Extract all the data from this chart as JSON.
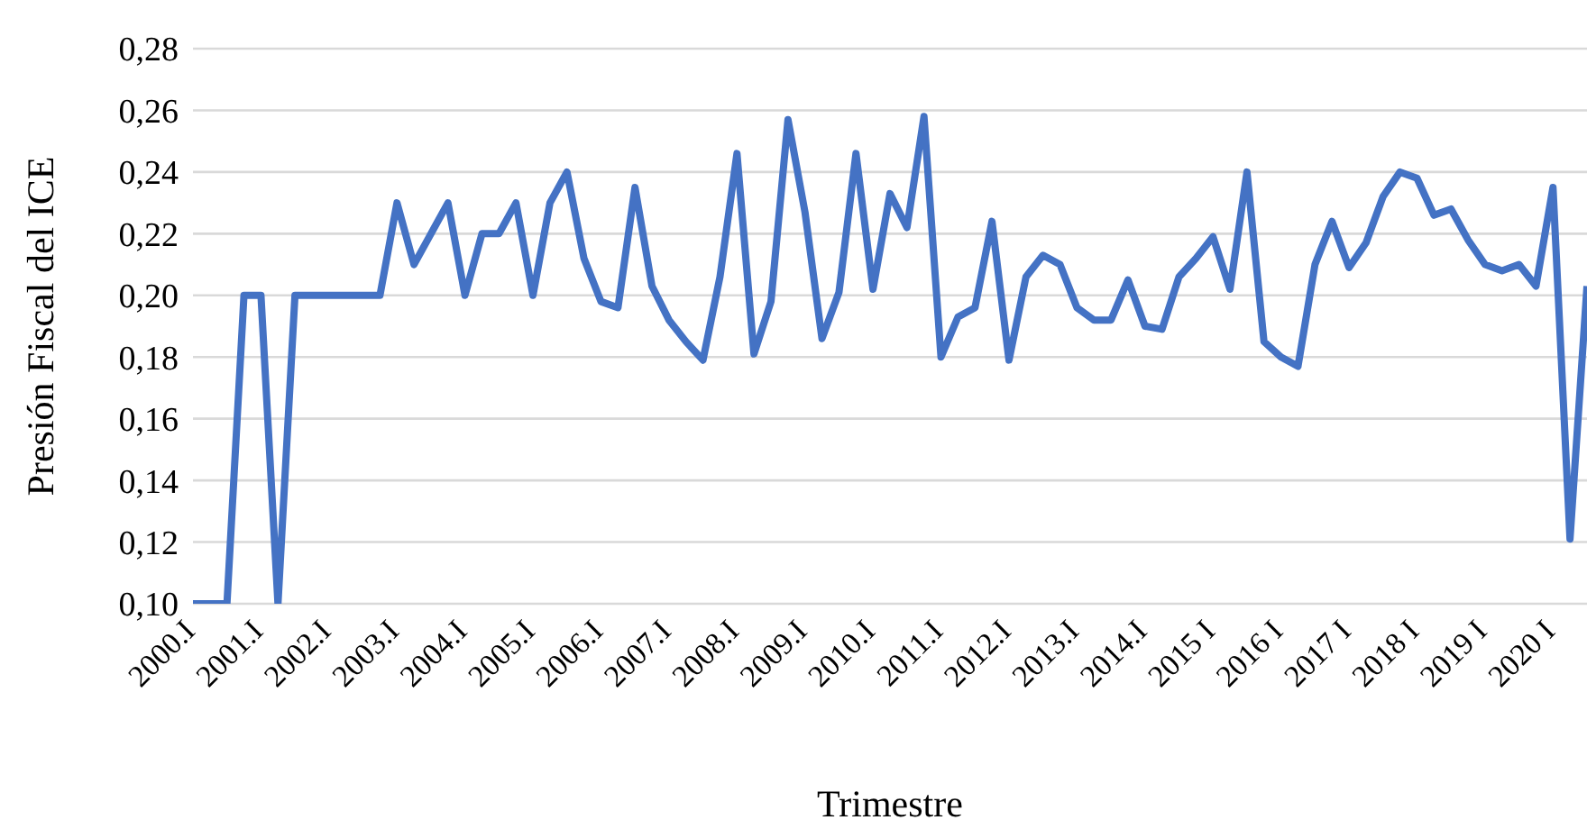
{
  "chart_data": {
    "type": "line",
    "xlabel": "Trimestre",
    "ylabel": "Presión Fiscal del ICE",
    "categories": [
      "2000.I",
      null,
      null,
      null,
      "2001.I",
      null,
      null,
      null,
      "2002.I",
      null,
      null,
      null,
      "2003.I",
      null,
      null,
      null,
      "2004.I",
      null,
      null,
      null,
      "2005.I",
      null,
      null,
      null,
      "2006.I",
      null,
      null,
      null,
      "2007.I",
      null,
      null,
      null,
      "2008.I",
      null,
      null,
      null,
      "2009.I",
      null,
      null,
      null,
      "2010.I",
      null,
      null,
      null,
      "2011.I",
      null,
      null,
      null,
      "2012.I",
      null,
      null,
      null,
      "2013.I",
      null,
      null,
      null,
      "2014.I",
      null,
      null,
      null,
      "2015 I",
      null,
      null,
      null,
      "2016 I",
      null,
      null,
      null,
      "2017 I",
      null,
      null,
      null,
      "2018 I",
      null,
      null,
      null,
      "2019 I",
      null,
      null,
      null,
      "2020 I",
      null,
      null
    ],
    "series": [
      {
        "color": "#4472c4",
        "values": [
          0.1,
          0.1,
          0.1,
          0.2,
          0.2,
          0.1,
          0.2,
          0.2,
          0.2,
          0.2,
          0.2,
          0.2,
          0.23,
          0.21,
          0.22,
          0.23,
          0.2,
          0.22,
          0.22,
          0.23,
          0.2,
          0.23,
          0.24,
          0.212,
          0.198,
          0.196,
          0.235,
          0.203,
          0.192,
          0.185,
          0.179,
          0.206,
          0.246,
          0.181,
          0.198,
          0.257,
          0.227,
          0.186,
          0.201,
          0.246,
          0.202,
          0.233,
          0.222,
          0.258,
          0.18,
          0.193,
          0.196,
          0.224,
          0.179,
          0.206,
          0.213,
          0.21,
          0.196,
          0.192,
          0.192,
          0.205,
          0.19,
          0.189,
          0.206,
          0.212,
          0.219,
          0.202,
          0.24,
          0.185,
          0.18,
          0.177,
          0.21,
          0.224,
          0.209,
          0.217,
          0.232,
          0.24,
          0.238,
          0.226,
          0.228,
          0.218,
          0.21,
          0.208,
          0.21,
          0.203,
          0.235,
          0.121,
          0.203
        ]
      }
    ],
    "ylim": [
      0.1,
      0.28
    ],
    "yticks": [
      {
        "value": 0.1,
        "label": "0,10"
      },
      {
        "value": 0.12,
        "label": "0,12"
      },
      {
        "value": 0.14,
        "label": "0,14"
      },
      {
        "value": 0.16,
        "label": "0,16"
      },
      {
        "value": 0.18,
        "label": "0,18"
      },
      {
        "value": 0.2,
        "label": "0,20"
      },
      {
        "value": 0.22,
        "label": "0,22"
      },
      {
        "value": 0.24,
        "label": "0,24"
      },
      {
        "value": 0.26,
        "label": "0,26"
      },
      {
        "value": 0.28,
        "label": "0,28"
      }
    ],
    "grid": "y",
    "legend": false,
    "marker": "none",
    "line_style": "solid"
  }
}
